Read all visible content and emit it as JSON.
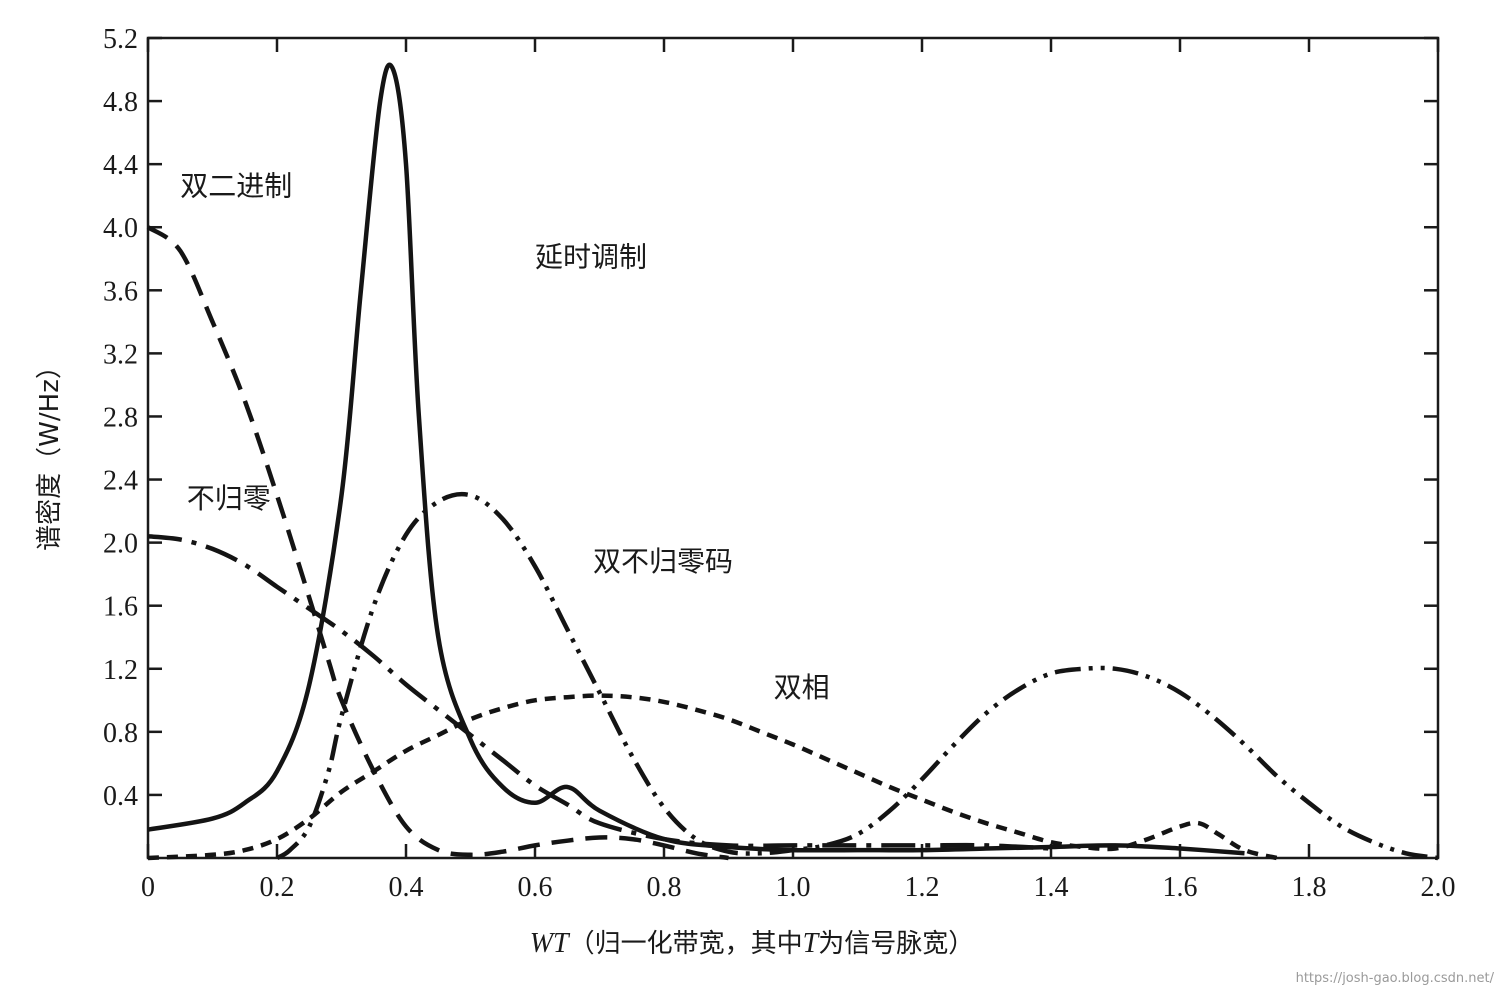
{
  "chart_data": {
    "type": "line",
    "title": "",
    "xlabel": "WT（归一化带宽，其中T为信号脉宽）",
    "xlabel_parts": {
      "italic": "WT",
      "cn1": "（归一化带宽，其中",
      "italicT": "T",
      "cn2": "为信号脉宽）"
    },
    "ylabel": "谱密度（W/Hz）",
    "xlim": [
      0,
      2.0
    ],
    "ylim": [
      0,
      5.2
    ],
    "xticks": [
      0,
      0.2,
      0.4,
      0.6,
      0.8,
      1.0,
      1.2,
      1.4,
      1.6,
      1.8,
      2.0
    ],
    "xtick_labels": [
      "0",
      "0.2",
      "0.4",
      "0.6",
      "0.8",
      "1.0",
      "1.2",
      "1.4",
      "1.6",
      "1.8",
      "2.0"
    ],
    "yticks": [
      0.4,
      0.8,
      1.2,
      1.6,
      2.0,
      2.4,
      2.8,
      3.2,
      3.6,
      4.0,
      4.4,
      4.8,
      5.2
    ],
    "ytick_labels": [
      "0.4",
      "0.8",
      "1.2",
      "1.6",
      "2.0",
      "2.4",
      "2.8",
      "3.2",
      "3.6",
      "4.0",
      "4.4",
      "4.8",
      "5.2"
    ],
    "grid": false,
    "series": [
      {
        "name": "延时调制",
        "style": "solid",
        "x": [
          0,
          0.1,
          0.15,
          0.2,
          0.25,
          0.3,
          0.33,
          0.36,
          0.38,
          0.4,
          0.42,
          0.45,
          0.5,
          0.55,
          0.6,
          0.65,
          0.7,
          0.8,
          0.9,
          1.0,
          1.1,
          1.2,
          1.3,
          1.4,
          1.5,
          1.6,
          1.7
        ],
        "values": [
          0.18,
          0.25,
          0.35,
          0.55,
          1.1,
          2.3,
          3.6,
          4.8,
          5.0,
          4.4,
          2.8,
          1.4,
          0.75,
          0.45,
          0.35,
          0.45,
          0.3,
          0.12,
          0.07,
          0.05,
          0.05,
          0.05,
          0.06,
          0.07,
          0.08,
          0.06,
          0.03
        ]
      },
      {
        "name": "双二进制",
        "style": "dashed",
        "x": [
          0,
          0.05,
          0.1,
          0.15,
          0.2,
          0.25,
          0.28,
          0.3,
          0.35,
          0.4,
          0.45,
          0.5,
          0.55,
          0.6,
          0.65,
          0.7,
          0.75,
          0.8,
          0.85,
          0.9
        ],
        "values": [
          4.0,
          3.85,
          3.4,
          2.9,
          2.3,
          1.65,
          1.25,
          1.0,
          0.55,
          0.2,
          0.05,
          0.02,
          0.04,
          0.08,
          0.11,
          0.13,
          0.12,
          0.08,
          0.03,
          0.0
        ]
      },
      {
        "name": "不归零",
        "style": "long-dash-dot",
        "x": [
          0,
          0.05,
          0.1,
          0.15,
          0.2,
          0.25,
          0.3,
          0.35,
          0.4,
          0.45,
          0.5,
          0.55,
          0.6,
          0.65,
          0.7,
          0.8,
          0.9,
          1.0,
          1.1,
          1.2,
          1.3,
          1.4
        ],
        "values": [
          2.04,
          2.02,
          1.96,
          1.86,
          1.72,
          1.58,
          1.44,
          1.28,
          1.1,
          0.94,
          0.78,
          0.62,
          0.46,
          0.34,
          0.22,
          0.12,
          0.08,
          0.08,
          0.08,
          0.08,
          0.08,
          0.06
        ]
      },
      {
        "name": "双不归零码",
        "style": "dash-dot-dot",
        "x": [
          0.2,
          0.22,
          0.25,
          0.28,
          0.3,
          0.35,
          0.4,
          0.45,
          0.5,
          0.55,
          0.6,
          0.65,
          0.7,
          0.75,
          0.8,
          0.85,
          0.9,
          0.95,
          1.0,
          1.05,
          1.1,
          1.15,
          1.2,
          1.25,
          1.3,
          1.35,
          1.4,
          1.45,
          1.5,
          1.55,
          1.6,
          1.65,
          1.7,
          1.75,
          1.8,
          1.85,
          1.9,
          1.95,
          2.0
        ],
        "values": [
          0.0,
          0.05,
          0.2,
          0.55,
          0.9,
          1.6,
          2.05,
          2.26,
          2.3,
          2.15,
          1.85,
          1.45,
          1.05,
          0.65,
          0.32,
          0.12,
          0.04,
          0.03,
          0.05,
          0.08,
          0.15,
          0.3,
          0.5,
          0.72,
          0.92,
          1.07,
          1.17,
          1.2,
          1.2,
          1.15,
          1.05,
          0.9,
          0.72,
          0.52,
          0.35,
          0.2,
          0.1,
          0.03,
          0.0
        ]
      },
      {
        "name": "双相",
        "style": "short-dash",
        "x": [
          0,
          0.1,
          0.15,
          0.2,
          0.25,
          0.3,
          0.35,
          0.4,
          0.45,
          0.5,
          0.55,
          0.6,
          0.65,
          0.7,
          0.75,
          0.8,
          0.85,
          0.9,
          0.95,
          1.0,
          1.05,
          1.1,
          1.15,
          1.2,
          1.25,
          1.3,
          1.35,
          1.4,
          1.45,
          1.5,
          1.55,
          1.6,
          1.63,
          1.66,
          1.7,
          1.75
        ],
        "values": [
          0.0,
          0.02,
          0.05,
          0.12,
          0.25,
          0.42,
          0.55,
          0.68,
          0.78,
          0.88,
          0.95,
          1.0,
          1.02,
          1.03,
          1.02,
          0.99,
          0.94,
          0.88,
          0.8,
          0.72,
          0.63,
          0.54,
          0.45,
          0.37,
          0.29,
          0.22,
          0.16,
          0.1,
          0.07,
          0.06,
          0.12,
          0.2,
          0.22,
          0.15,
          0.05,
          0.0
        ]
      }
    ],
    "annotations": [
      {
        "text": "双二进制",
        "x": 0.05,
        "y": 4.2
      },
      {
        "text": "延时调制",
        "x": 0.6,
        "y": 3.75
      },
      {
        "text": "不归零",
        "x": 0.06,
        "y": 2.22
      },
      {
        "text": "双不归零码",
        "x": 0.69,
        "y": 1.82
      },
      {
        "text": "双相",
        "x": 0.97,
        "y": 1.02
      }
    ]
  },
  "watermark": "https://josh-gao.blog.csdn.net/"
}
